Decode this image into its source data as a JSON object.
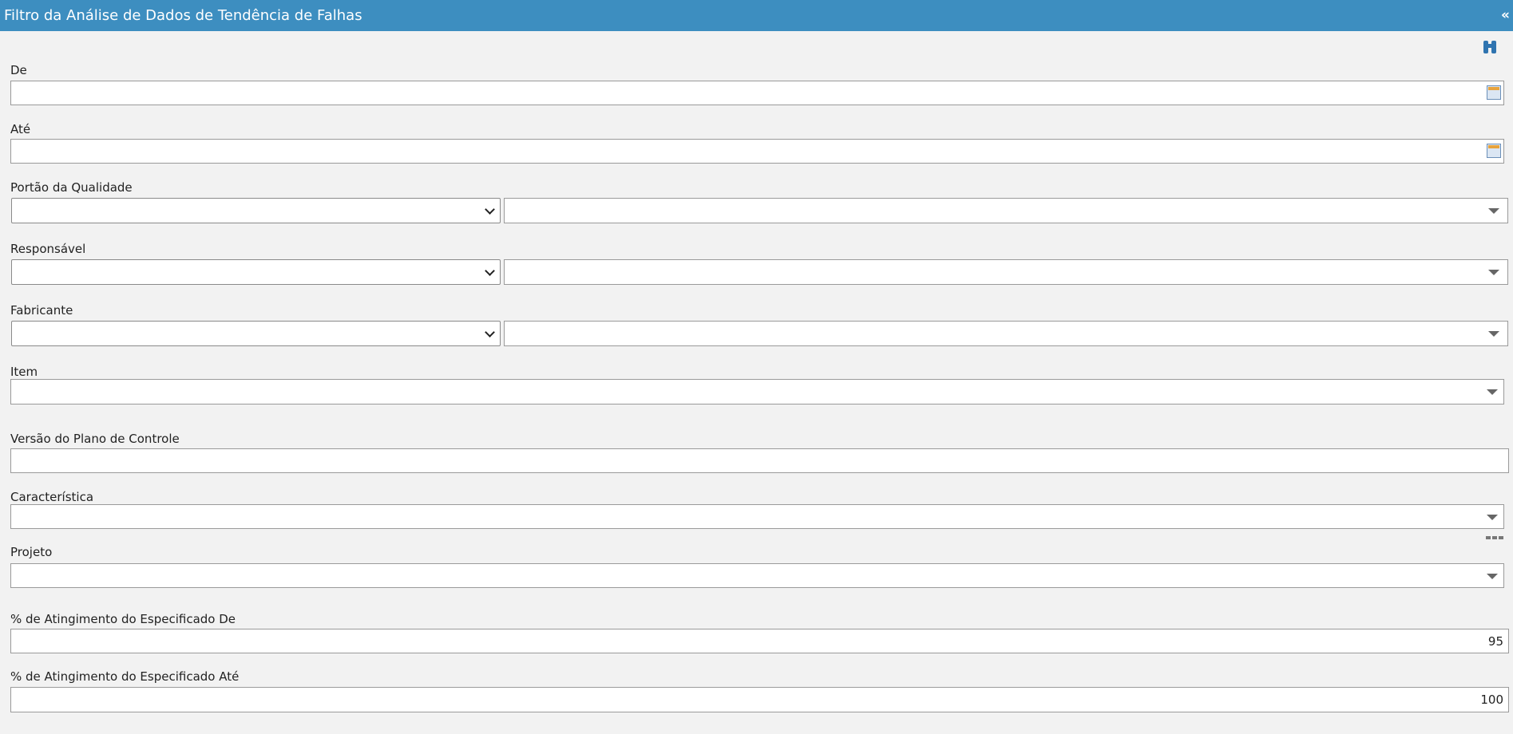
{
  "header": {
    "title": "Filtro da Análise de Dados de Tendência de Falhas",
    "collapse": "«"
  },
  "fields": [
    {
      "label": "De"
    },
    {
      "label": "Até"
    },
    {
      "label": "Portão da Qualidade"
    },
    {
      "label": "Responsável"
    },
    {
      "label": "Fabricante"
    },
    {
      "label": "Item"
    },
    {
      "label": "Versão do Plano de Controle"
    },
    {
      "label": "Característica"
    },
    {
      "label": "Projeto"
    },
    {
      "label": "% de Atingimento do Especificado De",
      "value": "95"
    },
    {
      "label": "% de Atingimento do Especificado Até",
      "value": "100"
    }
  ]
}
